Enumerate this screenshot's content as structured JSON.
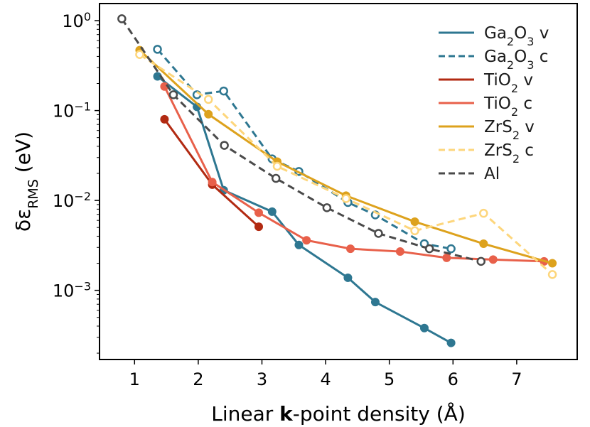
{
  "chart_data": {
    "type": "line",
    "xlabel": {
      "pre": "Linear ",
      "bold": "k",
      "post": "-point density (Å)"
    },
    "ylabel": {
      "main": "δε",
      "sub": "RMS",
      "unit": " (eV)"
    },
    "x_ticks": [
      "1",
      "2",
      "3",
      "4",
      "5",
      "6",
      "7"
    ],
    "y_ticks": [
      {
        "base": "10",
        "exp": "0"
      },
      {
        "base": "10",
        "exp": "−1"
      },
      {
        "base": "10",
        "exp": "−2"
      },
      {
        "base": "10",
        "exp": "−3"
      }
    ],
    "xlim": [
      0.45,
      7.95
    ],
    "ylim": [
      0.00017,
      1.55
    ],
    "yscale": "log",
    "grid": false,
    "legend_position": "top-right",
    "series": [
      {
        "name": "Ga2O3 v",
        "label_parts": [
          "Ga",
          "2",
          "O",
          "3",
          " v"
        ],
        "color": "#2e7791",
        "dash": "solid",
        "marker": "filled",
        "x": [
          1.36,
          1.98,
          2.4,
          3.16,
          3.58,
          4.35,
          4.78,
          5.55,
          5.97
        ],
        "y": [
          0.24,
          0.11,
          0.013,
          0.0075,
          0.0032,
          0.00138,
          0.00074,
          0.00038,
          0.00026
        ]
      },
      {
        "name": "Ga2O3 c",
        "label_parts": [
          "Ga",
          "2",
          "O",
          "3",
          " c"
        ],
        "color": "#2e7791",
        "dash": "dashed",
        "marker": "open",
        "x": [
          1.36,
          1.98,
          2.4,
          3.16,
          3.58,
          4.35,
          4.78,
          5.55,
          5.97
        ],
        "y": [
          0.48,
          0.15,
          0.165,
          0.029,
          0.021,
          0.0095,
          0.0069,
          0.0033,
          0.0029
        ]
      },
      {
        "name": "TiO2 v",
        "label_parts": [
          "TiO",
          "2",
          " v"
        ],
        "color": "#b22a12",
        "dash": "solid",
        "marker": "filled",
        "x": [
          1.47,
          2.22,
          2.95
        ],
        "y": [
          0.08,
          0.015,
          0.0051
        ]
      },
      {
        "name": "TiO2 c",
        "label_parts": [
          "TiO",
          "2",
          " c"
        ],
        "color": "#e8604a",
        "dash": "solid",
        "marker": "filled",
        "x": [
          1.47,
          2.22,
          2.95,
          3.7,
          4.39,
          5.17,
          5.9,
          6.63,
          7.43
        ],
        "y": [
          0.185,
          0.016,
          0.0073,
          0.0036,
          0.0029,
          0.0027,
          0.0023,
          0.0022,
          0.0021
        ]
      },
      {
        "name": "ZrS2 v",
        "label_parts": [
          "ZrS",
          "2",
          " v"
        ],
        "color": "#dda21d",
        "dash": "solid",
        "marker": "filled",
        "x": [
          1.08,
          2.16,
          3.24,
          4.32,
          5.4,
          6.48,
          7.56
        ],
        "y": [
          0.47,
          0.091,
          0.027,
          0.0113,
          0.0058,
          0.0033,
          0.002
        ]
      },
      {
        "name": "ZrS2 c",
        "label_parts": [
          "ZrS",
          "2",
          " c"
        ],
        "color": "#fdd67c",
        "dash": "dashed",
        "marker": "open",
        "x": [
          1.08,
          2.16,
          3.24,
          4.32,
          5.4,
          6.48,
          7.56
        ],
        "y": [
          0.42,
          0.133,
          0.024,
          0.0105,
          0.0046,
          0.0072,
          0.0015
        ]
      },
      {
        "name": "Al",
        "label_parts": [
          "Al"
        ],
        "color": "#4a4a4a",
        "dash": "dashed",
        "marker": "open",
        "x": [
          0.8,
          1.61,
          2.41,
          3.22,
          4.02,
          4.83,
          5.63,
          6.44
        ],
        "y": [
          1.05,
          0.15,
          0.041,
          0.0176,
          0.0083,
          0.0043,
          0.0029,
          0.0021
        ]
      }
    ]
  }
}
